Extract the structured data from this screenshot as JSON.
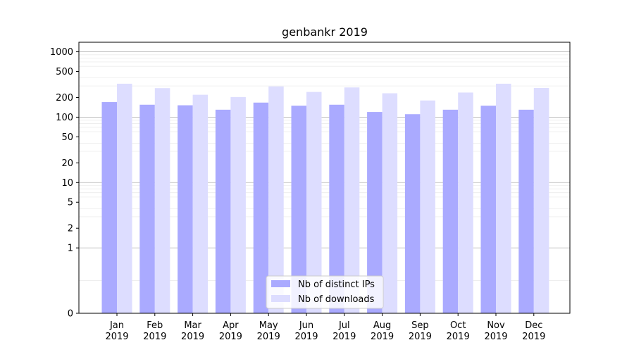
{
  "chart_data": {
    "type": "bar",
    "title": "genbankr 2019",
    "xlabel": "",
    "ylabel": "",
    "yscale": "symlog",
    "ylim": [
      0,
      1400
    ],
    "yticks": [
      0,
      1,
      2,
      5,
      10,
      20,
      50,
      100,
      200,
      500,
      1000
    ],
    "grid": true,
    "legend_position": "bottom-center",
    "categories": [
      [
        "Jan",
        "2019"
      ],
      [
        "Feb",
        "2019"
      ],
      [
        "Mar",
        "2019"
      ],
      [
        "Apr",
        "2019"
      ],
      [
        "May",
        "2019"
      ],
      [
        "Jun",
        "2019"
      ],
      [
        "Jul",
        "2019"
      ],
      [
        "Aug",
        "2019"
      ],
      [
        "Sep",
        "2019"
      ],
      [
        "Oct",
        "2019"
      ],
      [
        "Nov",
        "2019"
      ],
      [
        "Dec",
        "2019"
      ]
    ],
    "series": [
      {
        "name": "Nb of distinct IPs",
        "color": "#aaaaff",
        "values": [
          170,
          155,
          152,
          130,
          167,
          150,
          155,
          120,
          111,
          130,
          150,
          130
        ]
      },
      {
        "name": "Nb of downloads",
        "color": "#ddddff",
        "values": [
          325,
          278,
          220,
          203,
          295,
          243,
          285,
          232,
          180,
          238,
          325,
          280
        ]
      }
    ]
  }
}
